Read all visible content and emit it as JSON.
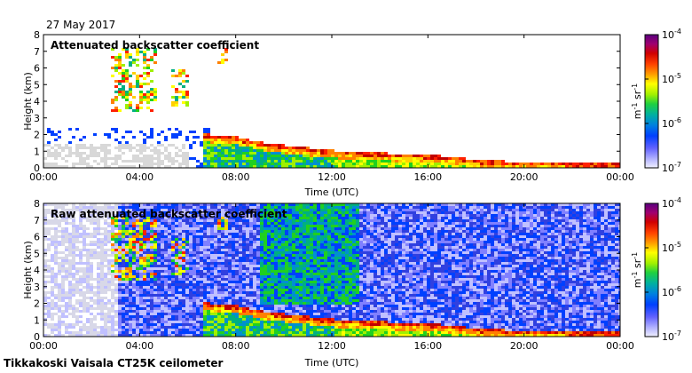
{
  "date_label": "27 May 2017",
  "footer": "Tikkakoski Vaisala CT25K ceilometer",
  "colorbar": {
    "unit": "m-1 sr-1",
    "unit_base1": "m",
    "unit_exp1": "-1",
    "unit_base2": " sr",
    "unit_exp2": "-1",
    "ticks": [
      {
        "base": "10",
        "exp": "-4",
        "value": 0.0001
      },
      {
        "base": "10",
        "exp": "-5",
        "value": 1e-05
      },
      {
        "base": "10",
        "exp": "-6",
        "value": 1e-06
      },
      {
        "base": "10",
        "exp": "-7",
        "value": 1e-07
      }
    ],
    "colors": [
      "#5a0080",
      "#8a00a0",
      "#c00000",
      "#ff2000",
      "#ff8000",
      "#ffd000",
      "#ffff00",
      "#a0f000",
      "#20d020",
      "#00b080",
      "#0090d0",
      "#0040ff",
      "#3040e0",
      "#8080ff",
      "#c0c0ff",
      "#e8e8ff"
    ],
    "scale": "log"
  },
  "chart_data": [
    {
      "type": "heatmap",
      "title": "Attenuated backscatter coefficient",
      "xlabel": "Time (UTC)",
      "ylabel": "Height (km)",
      "xticks": [
        "00:00",
        "04:00",
        "08:00",
        "12:00",
        "16:00",
        "20:00",
        "00:00"
      ],
      "xlim_hours": [
        0,
        24
      ],
      "yticks": [
        "0",
        "1",
        "2",
        "3",
        "4",
        "5",
        "6",
        "7",
        "8"
      ],
      "ylim": [
        0,
        8
      ],
      "clim": [
        1e-07,
        0.0001
      ],
      "features": {
        "boundary_layer_top_km": [
          {
            "t": 6.5,
            "h": 2.0
          },
          {
            "t": 8.0,
            "h": 1.8
          },
          {
            "t": 9.0,
            "h": 1.5
          },
          {
            "t": 10.0,
            "h": 1.3
          },
          {
            "t": 12.0,
            "h": 1.0
          },
          {
            "t": 14.0,
            "h": 0.85
          },
          {
            "t": 16.0,
            "h": 0.75
          },
          {
            "t": 17.0,
            "h": 0.6
          },
          {
            "t": 18.0,
            "h": 0.45
          },
          {
            "t": 20.0,
            "h": 0.3
          },
          {
            "t": 24.0,
            "h": 0.25
          }
        ],
        "high_cloud_periods_hours": [
          [
            2.7,
            4.7
          ],
          [
            5.3,
            6.0
          ],
          [
            7.2,
            7.6
          ]
        ]
      }
    },
    {
      "type": "heatmap",
      "title": "Raw attenuated backscatter coefficient",
      "xlabel": "Time (UTC)",
      "ylabel": "Height (km)",
      "xticks": [
        "00:00",
        "04:00",
        "08:00",
        "12:00",
        "16:00",
        "20:00",
        "00:00"
      ],
      "xlim_hours": [
        0,
        24
      ],
      "yticks": [
        "0",
        "1",
        "2",
        "3",
        "4",
        "5",
        "6",
        "7",
        "8"
      ],
      "ylim": [
        0,
        8
      ],
      "clim": [
        1e-07,
        0.0001
      ]
    }
  ]
}
